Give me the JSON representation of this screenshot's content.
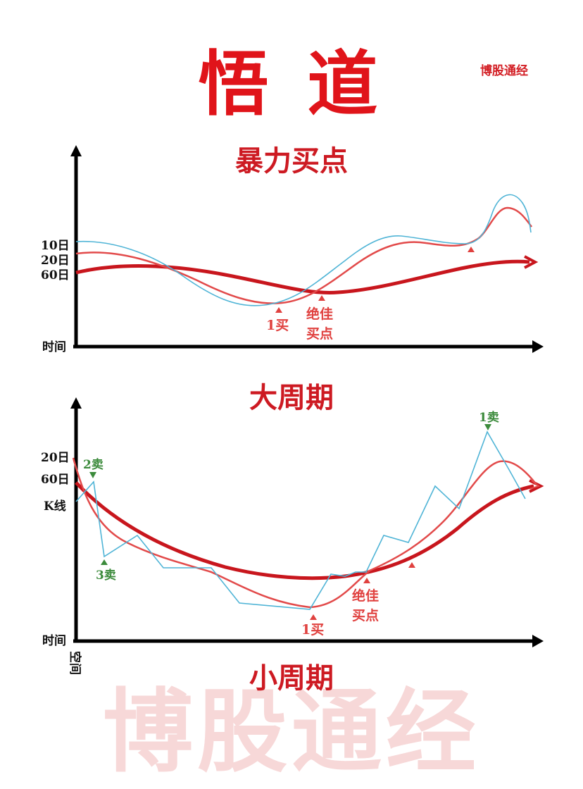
{
  "title": "悟 道",
  "brand": "博股通经",
  "watermark": "博股通经",
  "colors": {
    "title_red": "#e0141a",
    "ma60_red": "#c8161d",
    "ma20_red": "#e24a4a",
    "ma10_blue": "#4fb4d6",
    "sell_green": "#3c8b3c",
    "axis": "#000000"
  },
  "top_diagram": {
    "title": "暴力买点",
    "caption": "大周期",
    "y_labels": {
      "ma10": "10日",
      "ma20": "20日",
      "ma60": "60日"
    },
    "x_label": "时间",
    "markers": {
      "buy1": "1买",
      "best_buy_line1": "绝佳",
      "best_buy_line2": "买点"
    }
  },
  "bottom_diagram": {
    "caption": "小周期",
    "y_labels": {
      "ma20": "20日",
      "ma60": "60日",
      "kline": "K线"
    },
    "x_label": "时间",
    "y_axis_label": "空间",
    "markers": {
      "sell2": "2卖",
      "sell3": "3卖",
      "sell1": "1卖",
      "buy1": "1买",
      "best_buy_line1": "绝佳",
      "best_buy_line2": "买点"
    }
  }
}
